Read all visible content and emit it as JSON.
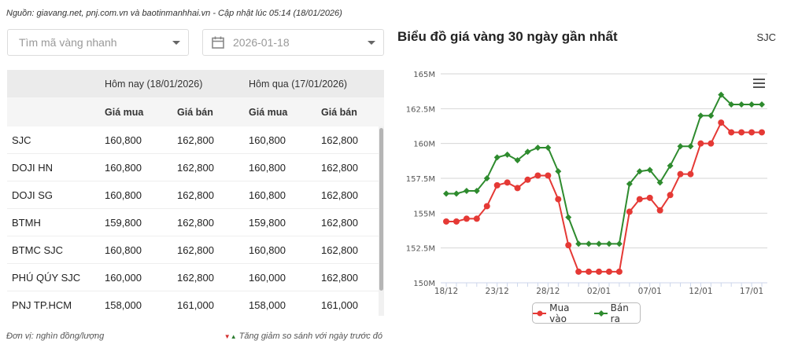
{
  "source_note": "Nguồn: giavang.net, pnj.com.vn và baotinmanhhai.vn - Cập nhật lúc 05:14 (18/01/2026)",
  "search": {
    "placeholder": "Tìm mã vàng nhanh",
    "icon": "chevron-down-icon"
  },
  "date_picker": {
    "value": "2026-01-18",
    "icon": "calendar-icon"
  },
  "table": {
    "group_headers": [
      "Hôm nay (18/01/2026)",
      "Hôm qua (17/01/2026)"
    ],
    "sub_headers": [
      "Giá mua",
      "Giá bán",
      "Giá mua",
      "Giá bán"
    ],
    "rows": [
      {
        "name": "SJC",
        "today_buy": "160,800",
        "today_sell": "162,800",
        "yest_buy": "160,800",
        "yest_sell": "162,800"
      },
      {
        "name": "DOJI HN",
        "today_buy": "160,800",
        "today_sell": "162,800",
        "yest_buy": "160,800",
        "yest_sell": "162,800"
      },
      {
        "name": "DOJI SG",
        "today_buy": "160,800",
        "today_sell": "162,800",
        "yest_buy": "160,800",
        "yest_sell": "162,800"
      },
      {
        "name": "BTMH",
        "today_buy": "159,800",
        "today_sell": "162,800",
        "yest_buy": "159,800",
        "yest_sell": "162,800"
      },
      {
        "name": "BTMC SJC",
        "today_buy": "160,800",
        "today_sell": "162,800",
        "yest_buy": "160,800",
        "yest_sell": "162,800"
      },
      {
        "name": "PHÚ QÚY SJC",
        "today_buy": "160,000",
        "today_sell": "162,800",
        "yest_buy": "160,000",
        "yest_sell": "162,800"
      },
      {
        "name": "PNJ TP.HCM",
        "today_buy": "158,000",
        "today_sell": "161,000",
        "yest_buy": "158,000",
        "yest_sell": "161,000"
      }
    ]
  },
  "footer": {
    "unit": "Đơn vị: nghìn đồng/lượng",
    "legend_note": "Tăng giảm so sánh với ngày trước đó",
    "down_glyph": "▼",
    "up_glyph": "▲"
  },
  "chart_header": {
    "title": "Biểu đồ giá vàng 30 ngày gần nhất",
    "code": "SJC"
  },
  "colors": {
    "buy": "#e53935",
    "sell": "#2e8b2e",
    "grid": "#d6d6d6",
    "axis": "#ccd6eb"
  },
  "chart_data": {
    "type": "line",
    "title": "Biểu đồ giá vàng 30 ngày gần nhất",
    "subtitle": "SJC",
    "xlabel": "",
    "ylabel": "",
    "ylim": [
      150,
      165
    ],
    "y_unit": "M",
    "y_ticks": [
      "150M",
      "152.5M",
      "155M",
      "157.5M",
      "160M",
      "162.5M",
      "165M"
    ],
    "x_tick_labels": [
      "18/12",
      "23/12",
      "28/12",
      "02/01",
      "07/01",
      "12/01",
      "17/01"
    ],
    "x": [
      "18/12",
      "19/12",
      "20/12",
      "21/12",
      "22/12",
      "23/12",
      "24/12",
      "25/12",
      "26/12",
      "27/12",
      "28/12",
      "29/12",
      "30/12",
      "31/12",
      "01/01",
      "02/01",
      "03/01",
      "04/01",
      "05/01",
      "06/01",
      "07/01",
      "08/01",
      "09/01",
      "10/01",
      "11/01",
      "12/01",
      "13/01",
      "14/01",
      "15/01",
      "16/01",
      "17/01",
      "18/01"
    ],
    "series": [
      {
        "name": "Mua vào",
        "color": "#e53935",
        "marker": "circle",
        "values": [
          154.4,
          154.4,
          154.6,
          154.6,
          155.5,
          157.0,
          157.2,
          156.8,
          157.4,
          157.7,
          157.7,
          156.0,
          152.7,
          150.8,
          150.8,
          150.8,
          150.8,
          150.8,
          155.1,
          156.0,
          156.1,
          155.2,
          156.3,
          157.8,
          157.8,
          160.0,
          160.0,
          161.5,
          160.8,
          160.8,
          160.8,
          160.8
        ]
      },
      {
        "name": "Bán ra",
        "color": "#2e8b2e",
        "marker": "diamond",
        "values": [
          156.4,
          156.4,
          156.6,
          156.6,
          157.5,
          159.0,
          159.2,
          158.8,
          159.4,
          159.7,
          159.7,
          158.0,
          154.7,
          152.8,
          152.8,
          152.8,
          152.8,
          152.8,
          157.1,
          158.0,
          158.1,
          157.2,
          158.4,
          159.8,
          159.8,
          162.0,
          162.0,
          163.5,
          162.8,
          162.8,
          162.8,
          162.8
        ]
      }
    ],
    "legend_position": "bottom-center",
    "grid": true
  },
  "legend": {
    "buy_label": "Mua vào",
    "sell_label": "Bán ra"
  }
}
